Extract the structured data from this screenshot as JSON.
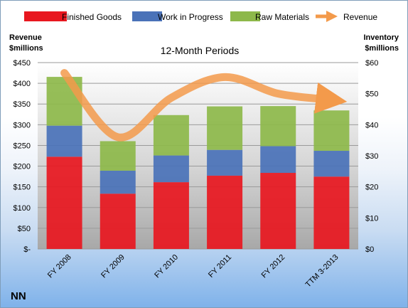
{
  "chart_data": {
    "type": "bar",
    "stacked": true,
    "title": "12-Month Periods",
    "company": "NN",
    "categories": [
      "FY 2008",
      "FY 2009",
      "FY 2010",
      "FY 2011",
      "FY 2012",
      "TTM 3-2013"
    ],
    "series": [
      {
        "name": "Finished Goods",
        "color": "#e8171f",
        "axis": "right",
        "values": [
          29.7,
          17.8,
          21.5,
          23.6,
          24.5,
          23.3
        ]
      },
      {
        "name": "Work in Progress",
        "color": "#4a72b8",
        "axis": "right",
        "values": [
          10,
          7.4,
          8.6,
          8.3,
          8.6,
          8.3
        ]
      },
      {
        "name": "Raw Materials",
        "color": "#8db84a",
        "axis": "right",
        "values": [
          15.7,
          9.5,
          13,
          14,
          12.9,
          13
        ]
      }
    ],
    "line_series": {
      "name": "Revenue",
      "color": "#f39a4b",
      "axis": "left",
      "values": [
        425,
        270,
        365,
        415,
        375,
        360
      ]
    },
    "left_axis": {
      "label_line1": "Revenue",
      "label_line2": "$millions",
      "ylim": [
        0,
        450
      ],
      "ticks": [
        "$-",
        "$50",
        "$100",
        "$150",
        "$200",
        "$250",
        "$300",
        "$350",
        "$400",
        "$450"
      ]
    },
    "right_axis": {
      "label_line1": "Inventory",
      "label_line2": "$millions",
      "ylim": [
        0,
        60
      ],
      "ticks": [
        "$0",
        "$10",
        "$20",
        "$30",
        "$40",
        "$50",
        "$60"
      ]
    },
    "legend_position": "top"
  }
}
